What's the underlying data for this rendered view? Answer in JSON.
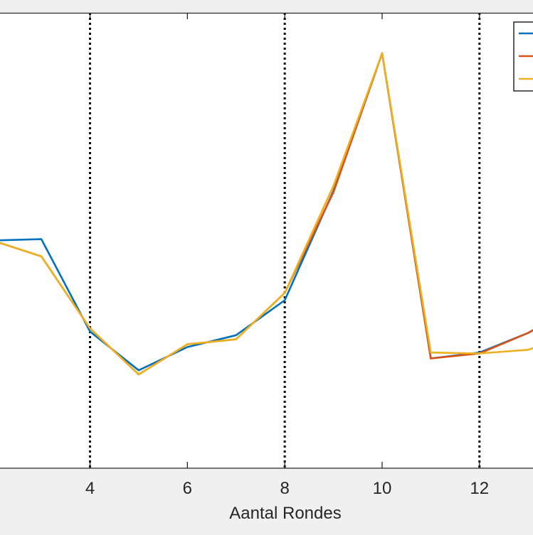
{
  "chart_data": {
    "type": "line",
    "title": "",
    "xlabel": "Aantal Rondes",
    "ylabel": "",
    "xlim": [
      2.15,
      13.1
    ],
    "ylim": [
      0,
      100
    ],
    "xticks": [
      4,
      6,
      8,
      10,
      12
    ],
    "xtick_labels": [
      "4",
      "6",
      "8",
      "10",
      "12"
    ],
    "grid": false,
    "legend_position": "top-right",
    "vertical_reference_lines": {
      "x": [
        4,
        8,
        12
      ],
      "style": "dotted",
      "color": "#000000"
    },
    "series": [
      {
        "color": "#0072bd",
        "x": [
          2,
          3,
          4,
          5,
          6,
          7,
          8,
          9,
          10,
          11,
          12,
          13,
          14
        ],
        "y": [
          50.0,
          50.3,
          30.0,
          21.5,
          26.6,
          29.2,
          36.9,
          60.9,
          91.1,
          24.1,
          25.4,
          29.7,
          36.0
        ]
      },
      {
        "color": "#d95319",
        "x": [
          2,
          3,
          4,
          5,
          6,
          7,
          8,
          9,
          10,
          11,
          12,
          13,
          14
        ],
        "y": [
          50.0,
          46.5,
          30.7,
          20.6,
          27.2,
          28.3,
          38.5,
          60.6,
          91.1,
          24.1,
          25.2,
          29.7,
          36.0
        ]
      },
      {
        "color": "#edb120",
        "x": [
          2,
          3,
          4,
          5,
          6,
          7,
          8,
          9,
          10,
          11,
          12,
          13,
          14
        ],
        "y": [
          50.0,
          46.5,
          30.7,
          20.6,
          27.2,
          28.3,
          38.5,
          62.0,
          91.1,
          25.4,
          25.2,
          26.0,
          30.0
        ]
      }
    ]
  }
}
